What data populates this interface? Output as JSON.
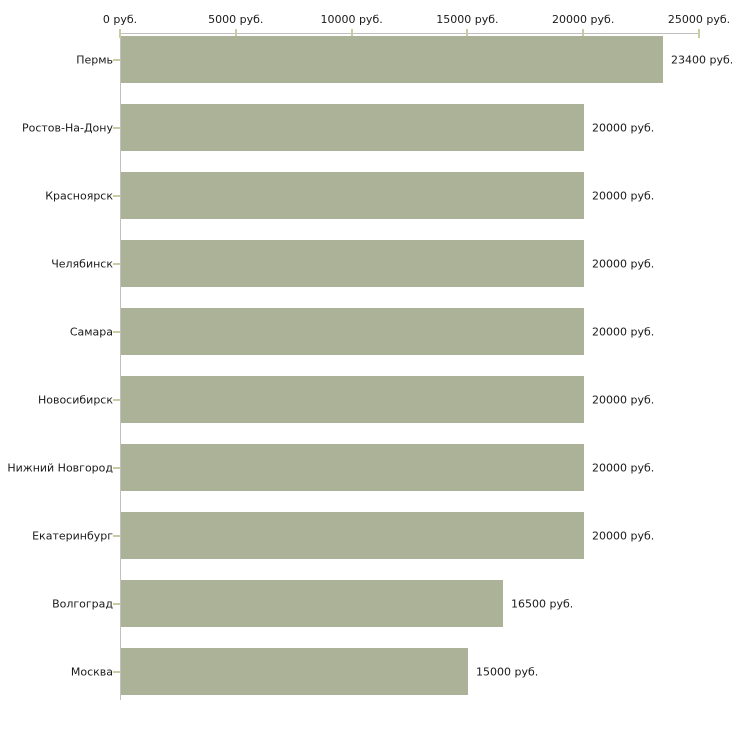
{
  "chart_data": {
    "type": "bar",
    "orientation": "horizontal",
    "title": "",
    "categories": [
      "Пермь",
      "Ростов-На-Дону",
      "Красноярск",
      "Челябинск",
      "Самара",
      "Новосибирск",
      "Нижний Новгород",
      "Екатеринбург",
      "Волгоград",
      "Москва"
    ],
    "values": [
      23400,
      20000,
      20000,
      20000,
      20000,
      20000,
      20000,
      20000,
      16500,
      15000
    ],
    "value_labels": [
      "23400 руб.",
      "20000 руб.",
      "20000 руб.",
      "20000 руб.",
      "20000 руб.",
      "20000 руб.",
      "20000 руб.",
      "20000 руб.",
      "16500 руб.",
      "15000 руб."
    ],
    "xlabel": "",
    "ylabel": "",
    "xlim": [
      0,
      25000
    ],
    "x_ticks": [
      0,
      5000,
      10000,
      15000,
      20000,
      25000
    ],
    "x_tick_labels": [
      "0 руб.",
      "5000 руб.",
      "10000 руб.",
      "15000 руб.",
      "20000 руб.",
      "25000 руб."
    ],
    "x_axis_position": "top",
    "grid": false,
    "legend": null,
    "colors": {
      "bar": "#abb297",
      "axis_line": "#c0c0c0",
      "tick_mark": "#cbcba2",
      "text": "#1a1a1a",
      "background": "#ffffff"
    }
  }
}
